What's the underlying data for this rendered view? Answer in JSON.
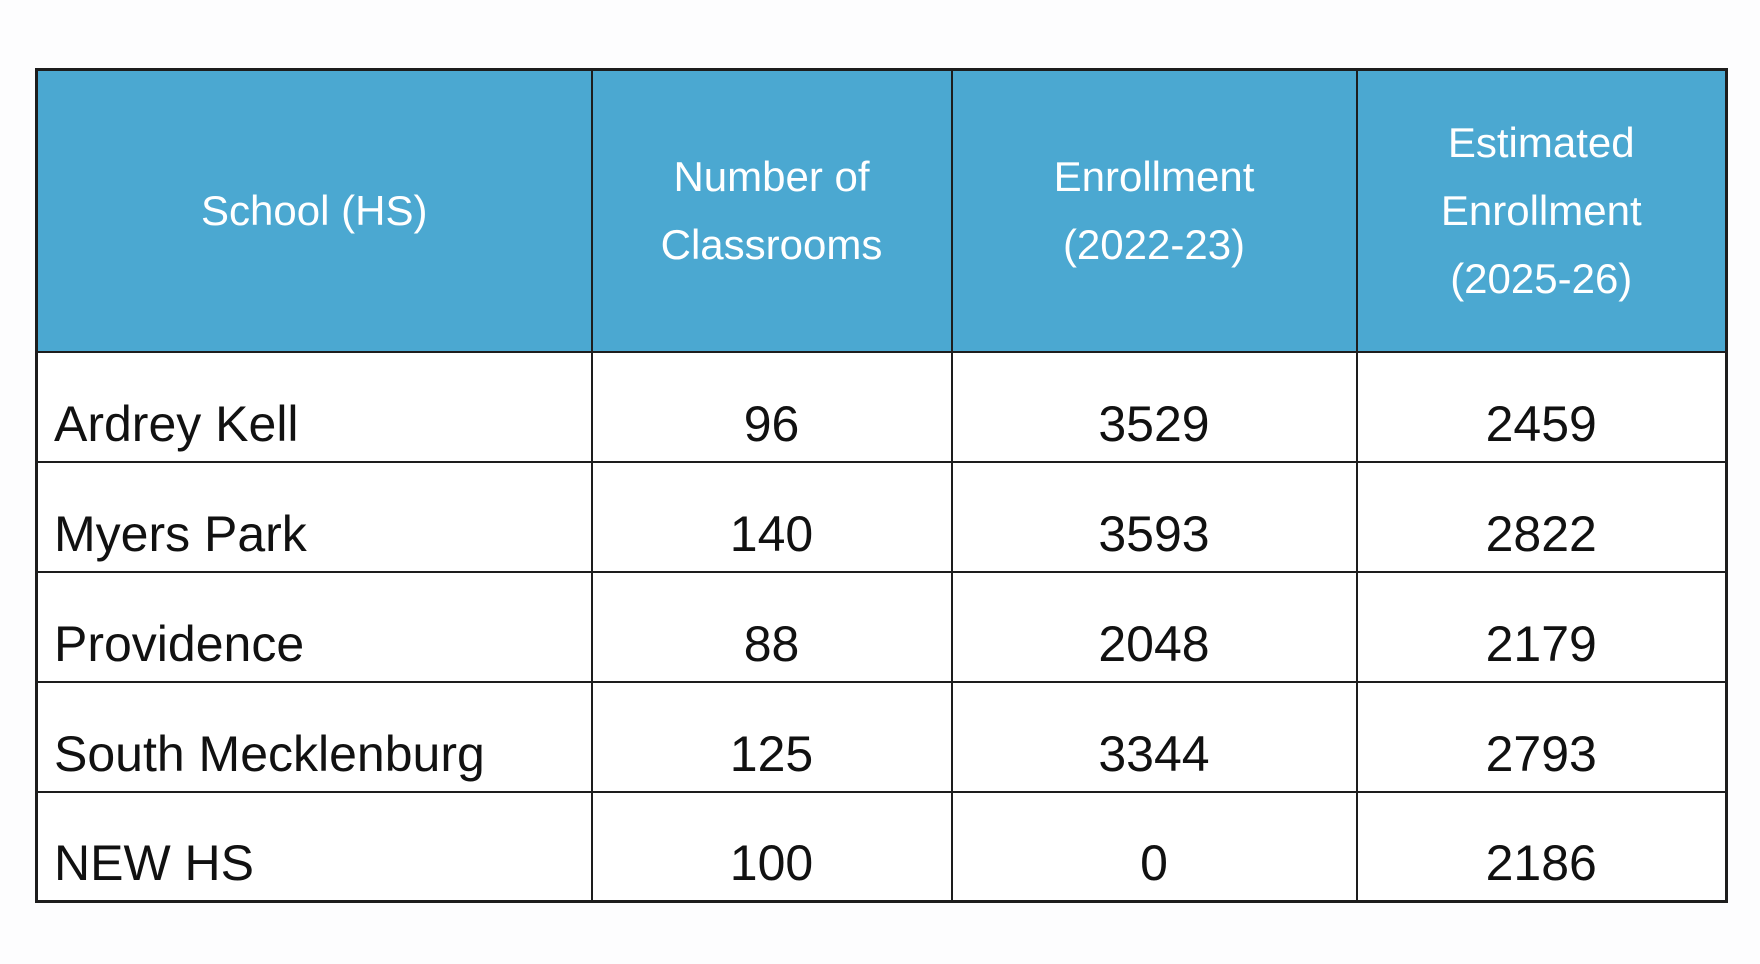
{
  "page": {
    "background": "#fdfdfe"
  },
  "table": {
    "header_bg": "#4BA8D1",
    "header_text_color": "#ffffff",
    "border_color": "#1d1d1d",
    "columns": [
      {
        "label": "School (HS)"
      },
      {
        "label": "Number of\nClassrooms"
      },
      {
        "label": "Enrollment\n(2022-23)"
      },
      {
        "label": "Estimated\nEnrollment\n(2025-26)"
      }
    ],
    "rows": [
      {
        "school": "Ardrey Kell",
        "classrooms": "96",
        "enrollment": "3529",
        "estimated": "2459"
      },
      {
        "school": "Myers Park",
        "classrooms": "140",
        "enrollment": "3593",
        "estimated": "2822"
      },
      {
        "school": "Providence",
        "classrooms": "88",
        "enrollment": "2048",
        "estimated": "2179"
      },
      {
        "school": "South Mecklenburg",
        "classrooms": "125",
        "enrollment": "3344",
        "estimated": "2793"
      },
      {
        "school": "NEW HS",
        "classrooms": "100",
        "enrollment": "0",
        "estimated": "2186"
      }
    ]
  },
  "chart_data": {
    "type": "table",
    "columns": [
      "School (HS)",
      "Number of Classrooms",
      "Enrollment (2022-23)",
      "Estimated Enrollment (2025-26)"
    ],
    "rows": [
      [
        "Ardrey Kell",
        96,
        3529,
        2459
      ],
      [
        "Myers Park",
        140,
        3593,
        2822
      ],
      [
        "Providence",
        88,
        2048,
        2179
      ],
      [
        "South Mecklenburg",
        125,
        3344,
        2793
      ],
      [
        "NEW HS",
        100,
        0,
        2186
      ]
    ]
  }
}
